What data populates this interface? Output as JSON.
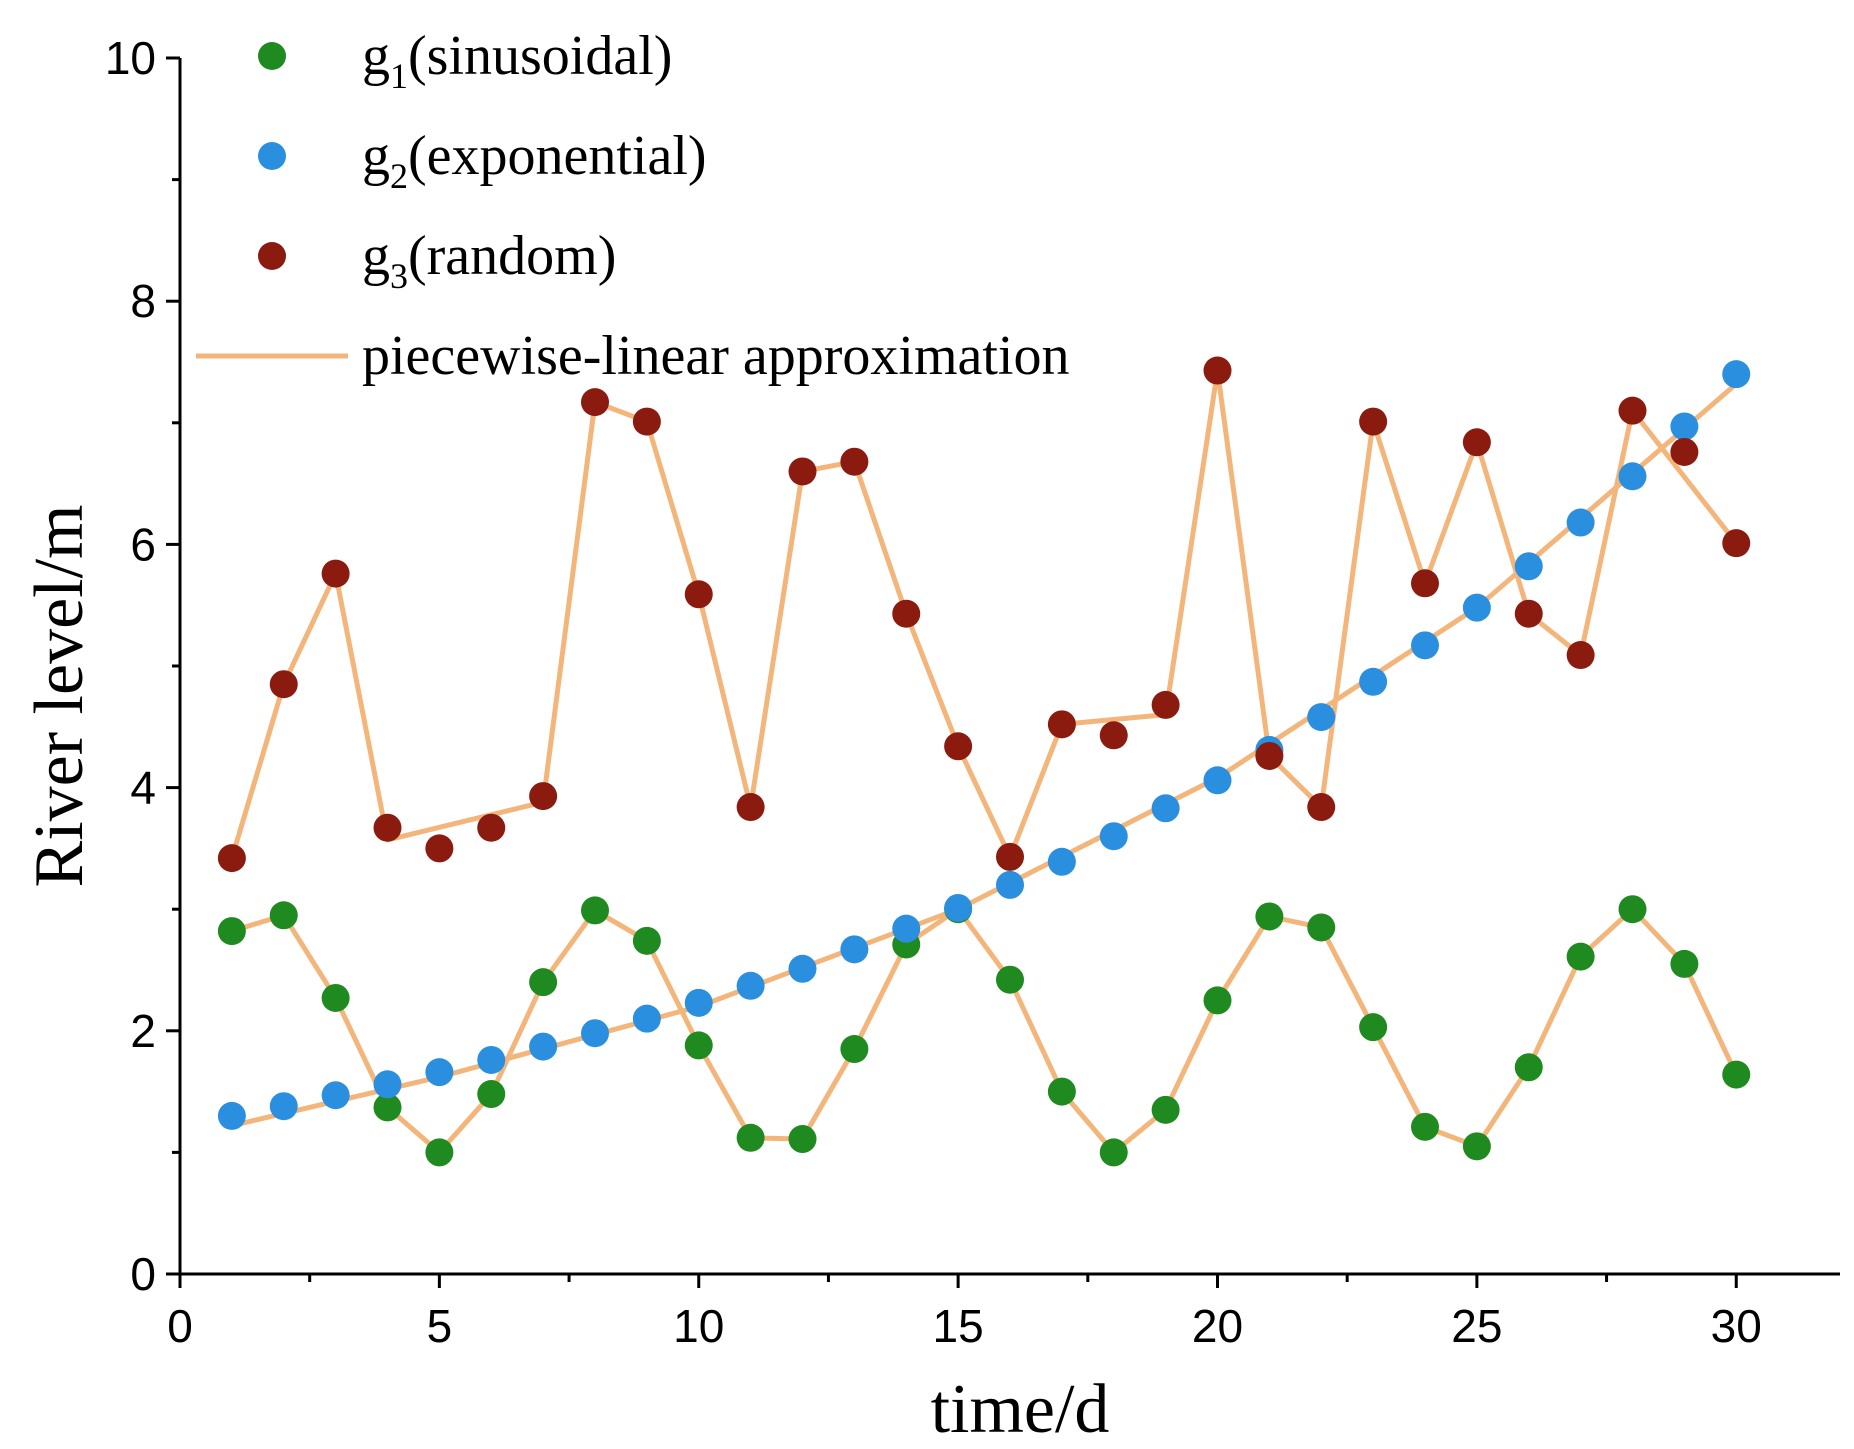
{
  "chart_data": {
    "type": "scatter",
    "xlabel": "time/d",
    "ylabel": "River level/m",
    "xlim": [
      0,
      32
    ],
    "ylim": [
      0,
      10
    ],
    "xticks": [
      0,
      5,
      10,
      15,
      20,
      25,
      30
    ],
    "yticks": [
      0,
      2,
      4,
      6,
      8,
      10
    ],
    "xtick_labels": [
      "0",
      "5",
      "10",
      "15",
      "20",
      "25",
      "30"
    ],
    "ytick_labels": [
      "0",
      "2",
      "4",
      "6",
      "8",
      "10"
    ],
    "legend_position": "top-left",
    "series": [
      {
        "key": "g1",
        "name": "g1(sinusoidal)",
        "label_main": "g",
        "label_sub": "1",
        "label_rest": "(sinusoidal)",
        "color": "#1f8a1f",
        "x": [
          1,
          2,
          3,
          4,
          5,
          6,
          7,
          8,
          9,
          10,
          11,
          12,
          13,
          14,
          15,
          16,
          17,
          18,
          19,
          20,
          21,
          22,
          23,
          24,
          25,
          26,
          27,
          28,
          29,
          30
        ],
        "values": [
          2.82,
          2.95,
          2.27,
          1.37,
          1.0,
          1.48,
          2.4,
          2.99,
          2.74,
          1.88,
          1.12,
          1.11,
          1.85,
          2.71,
          3.0,
          2.42,
          1.5,
          1.0,
          1.35,
          2.25,
          2.94,
          2.85,
          2.03,
          1.21,
          1.05,
          1.7,
          2.61,
          3.0,
          2.55,
          1.64
        ]
      },
      {
        "key": "g2",
        "name": "g2(exponential)",
        "label_main": "g",
        "label_sub": "2",
        "label_rest": "(exponential)",
        "color": "#2b8fe0",
        "x": [
          1,
          2,
          3,
          4,
          5,
          6,
          7,
          8,
          9,
          10,
          11,
          12,
          13,
          14,
          15,
          16,
          17,
          18,
          19,
          20,
          21,
          22,
          23,
          24,
          25,
          26,
          27,
          28,
          29,
          30
        ],
        "values": [
          1.3,
          1.38,
          1.47,
          1.56,
          1.66,
          1.76,
          1.87,
          1.98,
          2.1,
          2.23,
          2.37,
          2.51,
          2.67,
          2.84,
          3.01,
          3.2,
          3.39,
          3.6,
          3.83,
          4.06,
          4.31,
          4.58,
          4.87,
          5.17,
          5.48,
          5.82,
          6.18,
          6.56,
          6.97,
          7.4
        ]
      },
      {
        "key": "g3",
        "name": "g3(random)",
        "label_main": "g",
        "label_sub": "3",
        "label_rest": "(random)",
        "color": "#8b1a0f",
        "x": [
          1,
          2,
          3,
          4,
          5,
          6,
          7,
          8,
          9,
          10,
          11,
          12,
          13,
          14,
          15,
          16,
          17,
          18,
          19,
          20,
          21,
          22,
          23,
          24,
          25,
          26,
          27,
          28,
          29,
          30
        ],
        "values": [
          3.42,
          4.85,
          5.76,
          3.67,
          3.5,
          3.67,
          3.93,
          7.17,
          7.01,
          5.59,
          3.84,
          6.6,
          6.68,
          5.43,
          4.34,
          3.43,
          4.52,
          4.43,
          4.68,
          7.43,
          4.26,
          3.84,
          7.01,
          5.68,
          6.84,
          5.43,
          5.09,
          7.1,
          6.76,
          6.01
        ]
      }
    ],
    "approximation": {
      "name": "piecewise-linear approximation",
      "color": "#f3b57a",
      "lines": [
        {
          "x": [
            1,
            2,
            3,
            4,
            5,
            6,
            7,
            8,
            9,
            10,
            11,
            12,
            13,
            14,
            15,
            16,
            17,
            18,
            19,
            20,
            21,
            22,
            23,
            24,
            25,
            26,
            27,
            28,
            29,
            30
          ],
          "values": [
            2.82,
            2.95,
            2.27,
            1.37,
            1.0,
            1.48,
            2.4,
            2.99,
            2.74,
            1.88,
            1.12,
            1.11,
            1.85,
            2.71,
            3.0,
            2.42,
            1.5,
            1.0,
            1.35,
            2.25,
            2.94,
            2.85,
            2.03,
            1.21,
            1.05,
            1.7,
            2.61,
            3.0,
            2.55,
            1.64
          ]
        },
        {
          "x": [
            1,
            5,
            10,
            15,
            20,
            25,
            30
          ],
          "values": [
            1.22,
            1.62,
            2.2,
            3.0,
            4.08,
            5.48,
            7.32
          ]
        },
        {
          "x": [
            1,
            2,
            3,
            4,
            7,
            8,
            9,
            10,
            11,
            12,
            13,
            14,
            15,
            16,
            17,
            19,
            20,
            21,
            22,
            23,
            24,
            25,
            26,
            27,
            28,
            30
          ],
          "values": [
            3.42,
            4.85,
            5.76,
            3.57,
            3.88,
            7.17,
            7.01,
            5.59,
            3.84,
            6.6,
            6.68,
            5.43,
            4.34,
            3.43,
            4.52,
            4.6,
            7.43,
            4.26,
            3.84,
            7.01,
            5.68,
            6.84,
            5.43,
            5.09,
            7.1,
            6.01
          ]
        }
      ]
    }
  }
}
